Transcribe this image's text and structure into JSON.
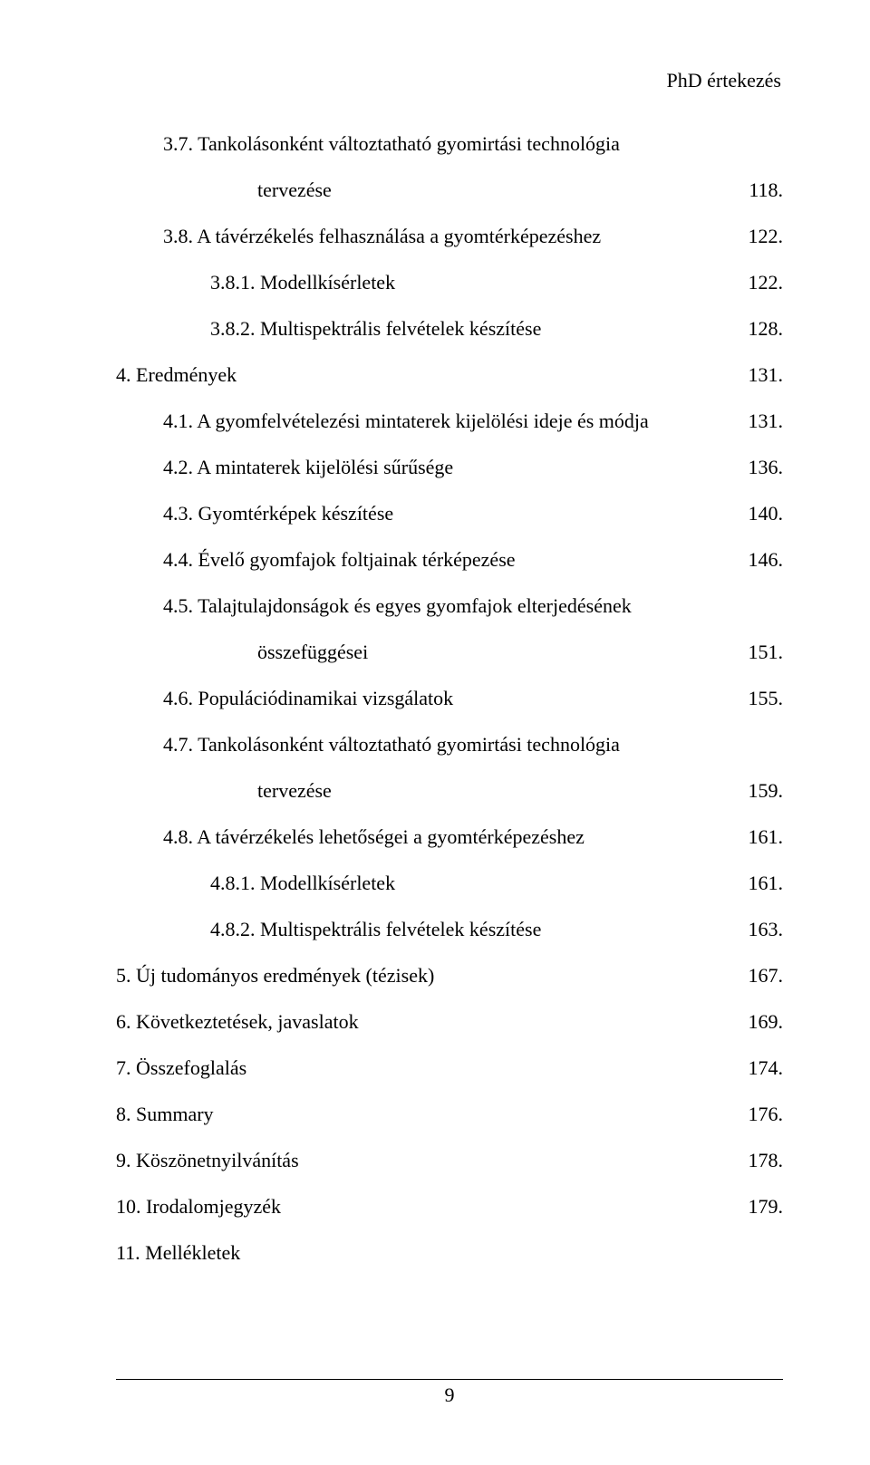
{
  "header": {
    "running_head": "PhD értekezés"
  },
  "footer": {
    "page_number": "9"
  },
  "toc": {
    "entries": [
      {
        "level": 1,
        "label": "3.7. Tankolásonként változtatható gyomirtási technológia",
        "page": ""
      },
      {
        "level": "cont",
        "label": "tervezése",
        "page": "118."
      },
      {
        "level": 1,
        "label": "3.8. A távérzékelés felhasználása a gyomtérképezéshez",
        "page": "122."
      },
      {
        "level": 2,
        "label": "3.8.1. Modellkísérletek",
        "page": "122."
      },
      {
        "level": 2,
        "label": "3.8.2. Multispektrális felvételek készítése",
        "page": "128."
      },
      {
        "level": 0,
        "label": "4. Eredmények",
        "page": "131."
      },
      {
        "level": 1,
        "label": "4.1. A gyomfelvételezési mintaterek kijelölési ideje és módja",
        "page": "131."
      },
      {
        "level": 1,
        "label": "4.2. A mintaterek kijelölési sűrűsége",
        "page": "136."
      },
      {
        "level": 1,
        "label": "4.3. Gyomtérképek készítése",
        "page": "140."
      },
      {
        "level": 1,
        "label": "4.4. Évelő gyomfajok foltjainak térképezése",
        "page": "146."
      },
      {
        "level": 1,
        "label": "4.5. Talajtulajdonságok és egyes gyomfajok elterjedésének",
        "page": ""
      },
      {
        "level": "cont",
        "label": "összefüggései",
        "page": "151."
      },
      {
        "level": 1,
        "label": "4.6. Populációdinamikai vizsgálatok",
        "page": "155."
      },
      {
        "level": 1,
        "label": "4.7. Tankolásonként változtatható gyomirtási technológia",
        "page": ""
      },
      {
        "level": "cont",
        "label": "tervezése",
        "page": "159."
      },
      {
        "level": 1,
        "label": "4.8. A távérzékelés lehetőségei a gyomtérképezéshez",
        "page": "161."
      },
      {
        "level": 2,
        "label": "4.8.1. Modellkísérletek",
        "page": "161."
      },
      {
        "level": 2,
        "label": "4.8.2. Multispektrális felvételek készítése",
        "page": "163."
      },
      {
        "level": 0,
        "label": "5. Új tudományos eredmények (tézisek)",
        "page": "167."
      },
      {
        "level": 0,
        "label": "6. Következtetések, javaslatok",
        "page": "169."
      },
      {
        "level": 0,
        "label": "7. Összefoglalás",
        "page": "174."
      },
      {
        "level": 0,
        "label": "8. Summary",
        "page": "176."
      },
      {
        "level": 0,
        "label": "9. Köszönetnyilvánítás",
        "page": "178."
      },
      {
        "level": 0,
        "label": "10. Irodalomjegyzék",
        "page": "179."
      },
      {
        "level": 0,
        "label": "11. Mellékletek",
        "page": ""
      }
    ]
  }
}
